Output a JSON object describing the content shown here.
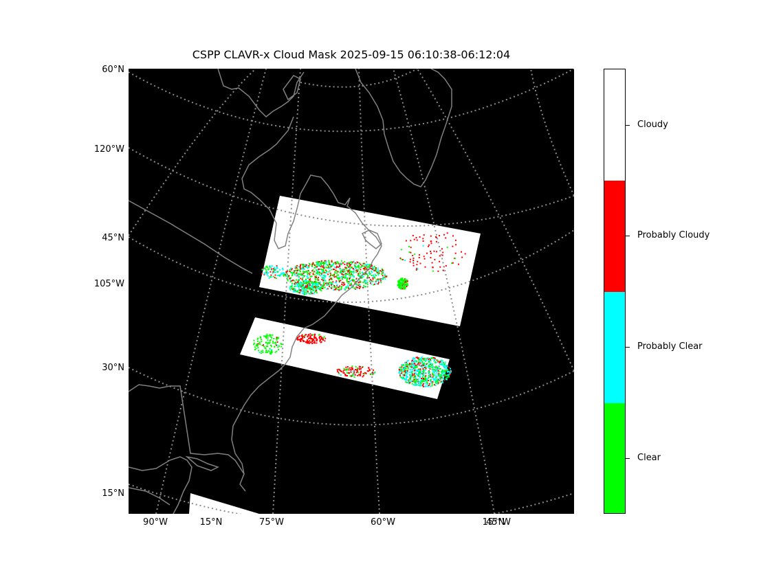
{
  "figure": {
    "title": "CSPP CLAVR-x Cloud Mask 2025-09-15 06:10:38-06:12:04"
  },
  "map": {
    "left_labels": [
      "60°N",
      "120°W",
      "45°N",
      "105°W",
      "30°N",
      "15°N"
    ],
    "bottom_labels": [
      "90°W",
      "15°N",
      "75°W",
      "60°W",
      "45°W",
      "15°N"
    ],
    "colors": {
      "background": "#000000",
      "coastline": "#808080",
      "graticule": "#8c8c8c",
      "cloudy": "#ffffff",
      "probably_cloudy": "#ff0000",
      "probably_clear": "#00ffff",
      "clear": "#00ff00"
    }
  },
  "colorbar": {
    "categories": [
      "Cloudy",
      "Probably Cloudy",
      "Probably Clear",
      "Clear"
    ],
    "colors": [
      "#ffffff",
      "#ff0000",
      "#00ffff",
      "#00ff00"
    ]
  }
}
